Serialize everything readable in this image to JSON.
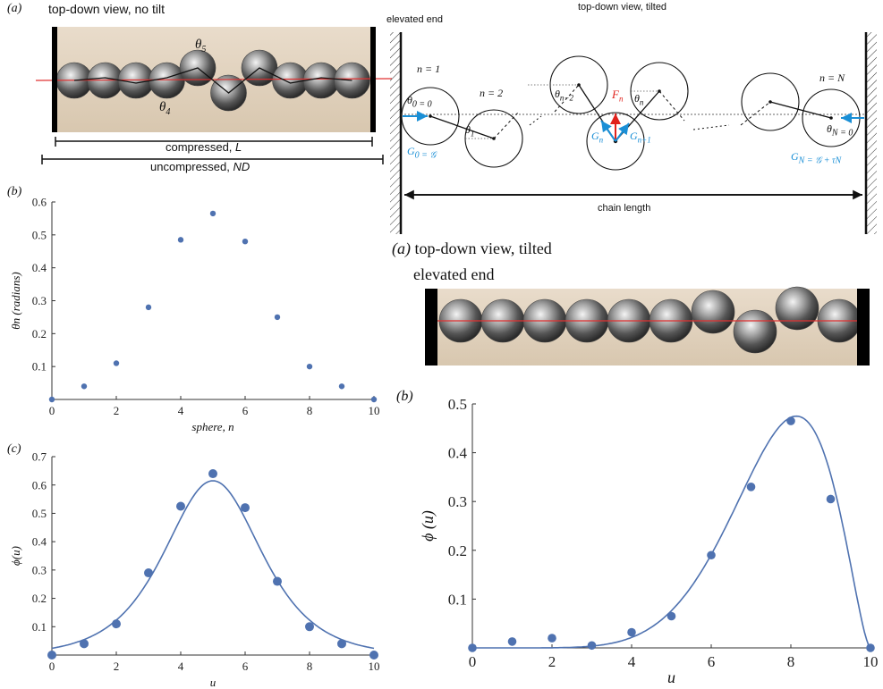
{
  "panel_top_left": {
    "tag": "(a)",
    "title": "top-down view, no tilt",
    "theta5": "θ",
    "theta5_sub": "5",
    "theta4": "θ",
    "theta4_sub": "4",
    "compressed": "compressed, ",
    "compressed_var": "L",
    "uncompressed": "uncompressed, ",
    "uncompressed_var": "ND"
  },
  "diagram": {
    "header": "top-down view, tilted",
    "elevated": "elevated end",
    "n1": "n = 1",
    "n2": "n = 2",
    "nN": "n = N",
    "theta0": "θ",
    "theta0_rest": "0 = 0",
    "theta1": "θ",
    "theta1_sub": "1",
    "thetan2": "θ",
    "thetan2_sub": "n−2",
    "thetan": "θ",
    "thetan_sub": "n",
    "thetaN": "θ",
    "thetaN_rest": "N = 0",
    "Fn": "F",
    "Fn_sub": "n",
    "Gn": "G",
    "Gn_sub": "n",
    "Gn1": "G",
    "Gn1_sub": "n+1",
    "G0": "G",
    "G0_rest": "0 = 𝒢",
    "GN": "G",
    "GN_rest": "N = 𝒢 + τN",
    "chain_length": "chain length",
    "accent": "#1a8fd6",
    "force_color": "#e0221c"
  },
  "panel_right_photo": {
    "tag": "(a)",
    "title": "top-down view, tilted",
    "elevated": "elevated end"
  },
  "tags": {
    "b_left": "(b)",
    "c_left": "(c)",
    "b_right": "(b)"
  },
  "chart_data": [
    {
      "id": "b-left",
      "type": "scatter",
      "xlabel": "sphere, n",
      "ylabel": "θn (radians)",
      "x": [
        0,
        1,
        2,
        3,
        4,
        5,
        6,
        7,
        8,
        9,
        10
      ],
      "y": [
        0,
        0.04,
        0.11,
        0.28,
        0.485,
        0.565,
        0.48,
        0.25,
        0.1,
        0.04,
        0
      ],
      "xlim": [
        0,
        10
      ],
      "ylim": [
        0,
        0.6
      ],
      "xticks": [
        "0",
        "2",
        "4",
        "6",
        "8",
        "10"
      ],
      "yticks": [
        "0.1",
        "0.2",
        "0.3",
        "0.4",
        "0.5",
        "0.6"
      ],
      "color": "#4f72b0"
    },
    {
      "id": "c-left",
      "type": "line",
      "xlabel": "u",
      "ylabel": "ϕ(u)",
      "points_x": [
        0,
        1,
        2,
        3,
        4,
        5,
        6,
        7,
        8,
        9,
        10
      ],
      "points_y": [
        0,
        0.04,
        0.11,
        0.29,
        0.525,
        0.64,
        0.52,
        0.26,
        0.1,
        0.04,
        0
      ],
      "curve": "sech-like peak ≈0.615 at u=5",
      "xlim": [
        0,
        10
      ],
      "ylim": [
        0,
        0.7
      ],
      "xticks": [
        "0",
        "2",
        "4",
        "6",
        "8",
        "10"
      ],
      "yticks": [
        "0.1",
        "0.2",
        "0.3",
        "0.4",
        "0.5",
        "0.6",
        "0.7"
      ],
      "color": "#4f72b0"
    },
    {
      "id": "b-right",
      "type": "line",
      "xlabel": "u",
      "ylabel": "ϕ (u)",
      "points_x": [
        0,
        1,
        2,
        3,
        4,
        5,
        6,
        7,
        8,
        9,
        10
      ],
      "points_y": [
        0,
        0.013,
        0.02,
        0.005,
        0.032,
        0.065,
        0.19,
        0.33,
        0.465,
        0.305,
        0
      ],
      "curve": "skewed peak ≈0.475 at u≈8",
      "xlim": [
        0,
        10
      ],
      "ylim": [
        0,
        0.5
      ],
      "xticks": [
        "0",
        "2",
        "4",
        "6",
        "8",
        "10"
      ],
      "yticks": [
        "0.1",
        "0.2",
        "0.3",
        "0.4",
        "0.5"
      ],
      "color": "#4f72b0"
    }
  ]
}
